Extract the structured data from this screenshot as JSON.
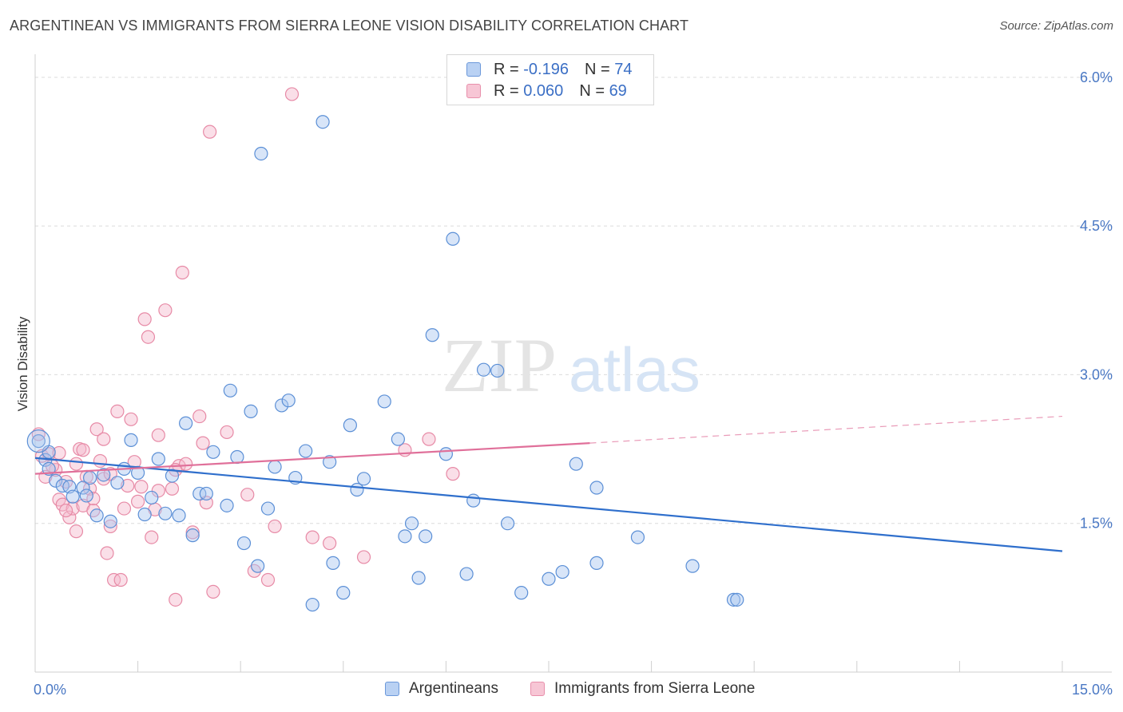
{
  "title": "ARGENTINEAN VS IMMIGRANTS FROM SIERRA LEONE VISION DISABILITY CORRELATION CHART",
  "source": "Source: ZipAtlas.com",
  "watermark": {
    "zip": "ZIP",
    "atlas": "atlas"
  },
  "legend": {
    "rows": [
      {
        "r_label": "R = ",
        "r_value": "-0.196",
        "n_label": "N = ",
        "n_value": "74"
      },
      {
        "r_label": "R = ",
        "r_value": "0.060",
        "n_label": "N = ",
        "n_value": "69"
      }
    ]
  },
  "colors": {
    "blue_fill": "#a9c6ef",
    "blue_stroke": "#5b8fd6",
    "blue_line": "#2f6fcc",
    "pink_fill": "#f5b8cb",
    "pink_stroke": "#e78aa6",
    "pink_line": "#e0709a"
  },
  "chart_data": {
    "type": "scatter",
    "xlabel": "",
    "ylabel": "Vision Disability",
    "xlim": [
      0,
      15
    ],
    "ylim": [
      0,
      6.2
    ],
    "x_tick_labels": [
      "0.0%",
      "15.0%"
    ],
    "y_ticks": [
      1.5,
      3.0,
      4.5,
      6.0
    ],
    "y_tick_labels": [
      "1.5%",
      "3.0%",
      "4.5%",
      "6.0%"
    ],
    "grid": true,
    "legend_position": "top-center",
    "series": [
      {
        "name": "Argentineans",
        "color": "#5b8fd6",
        "trend": {
          "x": [
            0,
            15
          ],
          "y": [
            2.16,
            1.22
          ]
        },
        "points": [
          [
            0.05,
            2.33
          ],
          [
            0.15,
            2.14
          ],
          [
            0.2,
            2.05
          ],
          [
            0.3,
            1.93
          ],
          [
            0.4,
            1.88
          ],
          [
            0.5,
            1.87
          ],
          [
            0.55,
            1.77
          ],
          [
            0.7,
            1.86
          ],
          [
            0.75,
            1.78
          ],
          [
            0.8,
            1.96
          ],
          [
            0.9,
            1.58
          ],
          [
            1.0,
            1.99
          ],
          [
            1.1,
            1.52
          ],
          [
            1.2,
            1.91
          ],
          [
            1.3,
            2.05
          ],
          [
            1.4,
            2.34
          ],
          [
            1.5,
            2.01
          ],
          [
            1.6,
            1.59
          ],
          [
            1.7,
            1.76
          ],
          [
            1.8,
            2.15
          ],
          [
            1.9,
            1.6
          ],
          [
            2.0,
            1.98
          ],
          [
            2.1,
            1.58
          ],
          [
            2.2,
            2.51
          ],
          [
            2.3,
            1.38
          ],
          [
            2.4,
            1.8
          ],
          [
            2.5,
            1.8
          ],
          [
            2.6,
            2.22
          ],
          [
            2.8,
            1.68
          ],
          [
            2.85,
            2.84
          ],
          [
            2.95,
            2.17
          ],
          [
            3.05,
            1.3
          ],
          [
            3.15,
            2.63
          ],
          [
            3.25,
            1.07
          ],
          [
            3.3,
            5.23
          ],
          [
            3.4,
            1.65
          ],
          [
            3.5,
            2.07
          ],
          [
            3.6,
            2.69
          ],
          [
            3.7,
            2.74
          ],
          [
            3.8,
            1.96
          ],
          [
            3.95,
            2.23
          ],
          [
            4.05,
            0.68
          ],
          [
            4.2,
            5.55
          ],
          [
            4.3,
            2.12
          ],
          [
            4.35,
            1.1
          ],
          [
            4.5,
            0.8
          ],
          [
            4.6,
            2.49
          ],
          [
            4.7,
            1.84
          ],
          [
            4.8,
            1.95
          ],
          [
            5.1,
            2.73
          ],
          [
            5.3,
            2.35
          ],
          [
            5.4,
            1.37
          ],
          [
            5.5,
            1.5
          ],
          [
            5.6,
            0.95
          ],
          [
            5.7,
            1.37
          ],
          [
            5.8,
            3.4
          ],
          [
            6.0,
            2.2
          ],
          [
            6.1,
            4.37
          ],
          [
            6.3,
            0.99
          ],
          [
            6.4,
            1.73
          ],
          [
            6.55,
            3.05
          ],
          [
            6.75,
            3.04
          ],
          [
            6.9,
            1.5
          ],
          [
            7.1,
            0.8
          ],
          [
            7.5,
            0.94
          ],
          [
            7.7,
            1.01
          ],
          [
            7.9,
            2.1
          ],
          [
            8.2,
            1.1
          ],
          [
            8.2,
            1.86
          ],
          [
            8.8,
            1.36
          ],
          [
            9.6,
            1.07
          ],
          [
            10.2,
            0.73
          ],
          [
            10.25,
            0.73
          ],
          [
            0.2,
            2.22
          ]
        ]
      },
      {
        "name": "Immigrants from Sierra Leone",
        "color": "#e78aa6",
        "trend": {
          "x": [
            0,
            8.1
          ],
          "y": [
            2.0,
            2.31
          ]
        },
        "trend_dashed": {
          "x": [
            8.1,
            15
          ],
          "y": [
            2.31,
            2.58
          ]
        },
        "points": [
          [
            0.05,
            2.4
          ],
          [
            0.1,
            2.18
          ],
          [
            0.15,
            1.97
          ],
          [
            0.2,
            2.2
          ],
          [
            0.3,
            2.04
          ],
          [
            0.35,
            1.74
          ],
          [
            0.4,
            1.69
          ],
          [
            0.45,
            1.92
          ],
          [
            0.5,
            1.56
          ],
          [
            0.55,
            1.65
          ],
          [
            0.6,
            1.42
          ],
          [
            0.65,
            2.25
          ],
          [
            0.7,
            1.68
          ],
          [
            0.75,
            1.97
          ],
          [
            0.8,
            1.85
          ],
          [
            0.85,
            1.75
          ],
          [
            0.9,
            2.45
          ],
          [
            0.95,
            2.13
          ],
          [
            1.0,
            2.35
          ],
          [
            1.05,
            1.2
          ],
          [
            1.1,
            1.47
          ],
          [
            1.15,
            0.93
          ],
          [
            1.2,
            2.63
          ],
          [
            1.25,
            0.93
          ],
          [
            1.3,
            1.65
          ],
          [
            1.35,
            1.88
          ],
          [
            1.4,
            2.55
          ],
          [
            1.45,
            2.12
          ],
          [
            1.5,
            1.72
          ],
          [
            1.55,
            1.87
          ],
          [
            1.6,
            3.56
          ],
          [
            1.65,
            3.38
          ],
          [
            1.7,
            1.36
          ],
          [
            1.75,
            1.64
          ],
          [
            1.8,
            2.39
          ],
          [
            1.9,
            3.65
          ],
          [
            2.0,
            1.85
          ],
          [
            2.05,
            0.73
          ],
          [
            2.1,
            2.08
          ],
          [
            2.15,
            4.03
          ],
          [
            2.2,
            2.1
          ],
          [
            2.3,
            1.41
          ],
          [
            2.4,
            2.58
          ],
          [
            2.45,
            2.31
          ],
          [
            2.5,
            1.71
          ],
          [
            2.55,
            5.45
          ],
          [
            2.6,
            0.81
          ],
          [
            2.8,
            2.42
          ],
          [
            3.1,
            1.79
          ],
          [
            3.2,
            1.02
          ],
          [
            3.4,
            0.93
          ],
          [
            3.5,
            1.47
          ],
          [
            3.75,
            5.83
          ],
          [
            4.05,
            1.36
          ],
          [
            4.3,
            1.3
          ],
          [
            4.8,
            1.16
          ],
          [
            5.4,
            2.24
          ],
          [
            5.75,
            2.35
          ],
          [
            6.1,
            2.0
          ],
          [
            0.6,
            2.1
          ],
          [
            1.0,
            1.95
          ],
          [
            0.25,
            2.08
          ],
          [
            1.1,
            2.0
          ],
          [
            0.35,
            2.21
          ],
          [
            1.8,
            1.83
          ],
          [
            0.7,
            2.24
          ],
          [
            2.05,
            2.04
          ],
          [
            0.45,
            1.63
          ],
          [
            0.85,
            1.63
          ]
        ]
      }
    ]
  }
}
